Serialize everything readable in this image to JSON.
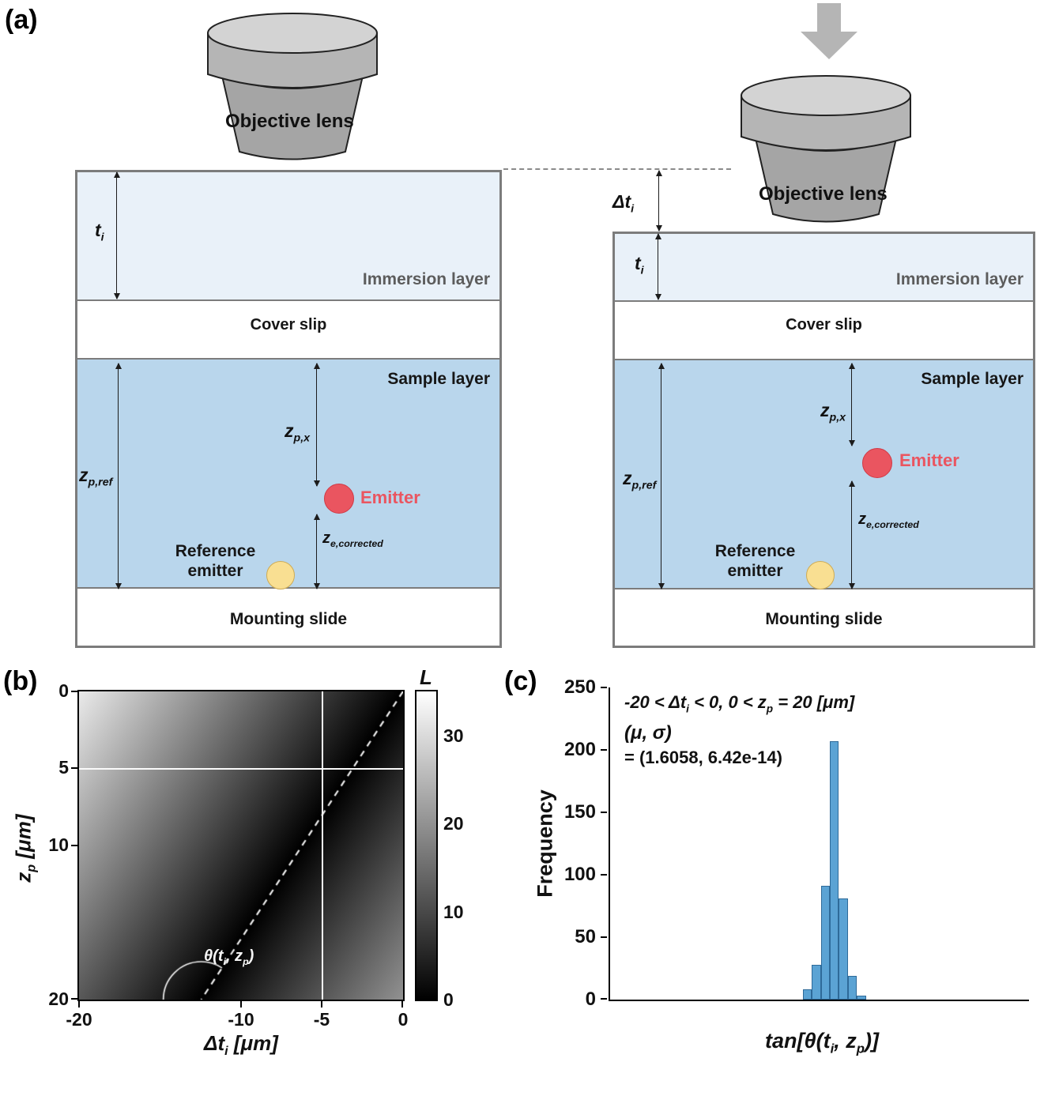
{
  "figure": {
    "panel_a_label": "(a)",
    "panel_b_label": "(b)",
    "panel_c_label": "(c)"
  },
  "panel_a": {
    "objective_lens": "Objective lens",
    "immersion_layer": "Immersion layer",
    "cover_slip": "Cover slip",
    "sample_layer": "Sample layer",
    "mounting_slide": "Mounting slide",
    "emitter": "Emitter",
    "reference_emitter_l1": "Reference",
    "reference_emitter_l2": "emitter",
    "ti": {
      "base": "t",
      "sub": "i"
    },
    "dti": {
      "base": "Δt",
      "sub": "i"
    },
    "zpref": {
      "base": "z",
      "sub": "p,ref"
    },
    "zpx": {
      "base": "z",
      "sub": "p,x"
    },
    "zecorr": {
      "base": "z",
      "sub": "e,corrected"
    },
    "colors": {
      "emitter": "#ea5560",
      "reference_emitter": "#f9df92",
      "sample_layer": "#b9d6ec",
      "immersion_layer": "#e9f1f9",
      "lens_gray": "#b5b5b5",
      "press_arrow": "#b5b5b5"
    }
  },
  "panel_b": {
    "xticks": [
      "-20",
      "-10",
      "-5",
      "0"
    ],
    "yticks": [
      "0",
      "5",
      "10",
      "20"
    ],
    "xlabel": {
      "p1": "Δt",
      "s1": "i",
      "p2": " [μm]"
    },
    "ylabel": {
      "p1": "z",
      "s1": "p",
      "p2": " [μm]"
    },
    "colorbar_title": "L",
    "colorbar_ticks": [
      "0",
      "10",
      "20",
      "30"
    ],
    "theta": {
      "p1": "θ(t",
      "s1": "i",
      "p2": ", z",
      "s2": "p",
      "p3": ")"
    }
  },
  "panel_c": {
    "ylabel": "Frequency",
    "yticks": [
      "0",
      "50",
      "100",
      "150",
      "200",
      "250"
    ],
    "xlabel": {
      "p1": "tan[θ(t",
      "s1": "i",
      "p2": ", z",
      "s2": "p",
      "p3": ")]"
    },
    "ann1": {
      "p1": "-20 < Δt",
      "s1": "i",
      "p2": " < 0, 0 < z",
      "s2": "p",
      "p3": " = 20 [μm]"
    },
    "ann2": "(μ, σ)",
    "ann3": "= (1.6058, 6.42e-14)"
  },
  "chart_data": [
    {
      "id": "panel_b_heatmap",
      "type": "heatmap",
      "xlabel": "Δt_i [μm]",
      "ylabel": "z_p [μm]",
      "x_range": [
        -20,
        0
      ],
      "y_range": [
        0,
        20
      ],
      "xticks": [
        -20,
        -10,
        -5,
        0
      ],
      "yticks": [
        0,
        5,
        10,
        20
      ],
      "colorbar_label": "L",
      "colorbar_range": [
        0,
        35
      ],
      "colorbar_ticks": [
        0,
        10,
        20,
        30
      ],
      "value_model": "L(dt,zp) = |zp + tan_theta*dt| (dark band along zp = -tan_theta*dt)",
      "tan_theta": 1.6058,
      "crosshair": {
        "x": -5,
        "y": 5
      },
      "dashed_line": {
        "through_x": 0,
        "through_y": 0,
        "slope": -1.6058
      },
      "annotation": "θ(t_i, z_p)"
    },
    {
      "id": "panel_c_histogram",
      "type": "bar",
      "xlabel": "tan[θ(t_i, z_p)]",
      "ylabel": "Frequency",
      "ylim": [
        0,
        250
      ],
      "yticks": [
        0,
        50,
        100,
        150,
        200,
        250
      ],
      "values": [
        8,
        28,
        91,
        207,
        81,
        19,
        3
      ],
      "mean": 1.6058,
      "sigma": "6.42e-14",
      "annotation_lines": [
        "-20 < Δt_i < 0, 0 < z_p = 20 [μm]",
        "(μ, σ)",
        "= (1.6058, 6.42e-14)"
      ],
      "bar_color": "#5ba3d4",
      "bar_edge_color": "#2e6a99"
    }
  ]
}
